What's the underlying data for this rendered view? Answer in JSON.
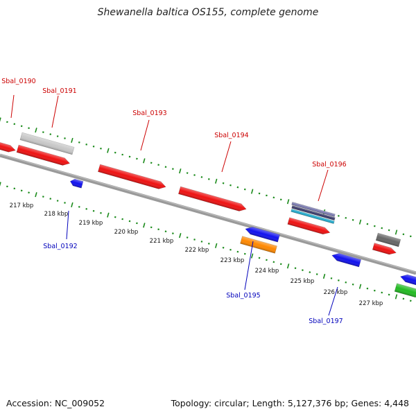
{
  "title": "Shewanella baltica OS155, complete genome",
  "accession": "Accession: NC_009052",
  "genome_info": "Topology: circular; Length: 5,127,376 bp; Genes: 4,448",
  "colors": {
    "forward_label": "#cc0000",
    "reverse_label": "#0000bb",
    "tick_green": "#1a8a1a",
    "backbone": "#808080"
  },
  "kbp_labels": [
    "217 kbp",
    "218 kbp",
    "219 kbp",
    "220 kbp",
    "221 kbp",
    "222 kbp",
    "223 kbp",
    "224 kbp",
    "225 kbp",
    "226 kbp",
    "227 kbp"
  ],
  "gene_labels": [
    {
      "text": "Sbal_0190",
      "strand": "forward"
    },
    {
      "text": "Sbal_0191",
      "strand": "forward"
    },
    {
      "text": "Sbal_0193",
      "strand": "forward"
    },
    {
      "text": "Sbal_0194",
      "strand": "forward"
    },
    {
      "text": "Sbal_0196",
      "strand": "forward"
    },
    {
      "text": "Sbal_0192",
      "strand": "reverse"
    },
    {
      "text": "Sbal_0195",
      "strand": "reverse"
    },
    {
      "text": "Sbal_0197",
      "strand": "reverse"
    }
  ],
  "features": [
    {
      "name": "gene-0190",
      "color": "#ee1111"
    },
    {
      "name": "gene-0191",
      "color": "#ee1111"
    },
    {
      "name": "gene-0193",
      "color": "#ee1111"
    },
    {
      "name": "gene-0194",
      "color": "#ee1111"
    },
    {
      "name": "gene-0196",
      "color": "#ee1111"
    },
    {
      "name": "gene-forward-right",
      "color": "#ee1111"
    },
    {
      "name": "gene-0191-cds",
      "color": "#c8c8c8"
    },
    {
      "name": "gene-0196-band-1",
      "color": "#7a7ab0"
    },
    {
      "name": "gene-0196-band-2",
      "color": "#3a3a6a"
    },
    {
      "name": "gene-0196-band-3",
      "color": "#22aacc"
    },
    {
      "name": "gene-grey-right",
      "color": "#666666"
    },
    {
      "name": "gene-0192",
      "color": "#1111ee"
    },
    {
      "name": "gene-0195",
      "color": "#1111ee"
    },
    {
      "name": "gene-0195-orange",
      "color": "#ff8800"
    },
    {
      "name": "gene-0197",
      "color": "#1111ee"
    },
    {
      "name": "gene-reverse-right",
      "color": "#1111ee"
    },
    {
      "name": "gene-green-right",
      "color": "#22bb22"
    }
  ]
}
